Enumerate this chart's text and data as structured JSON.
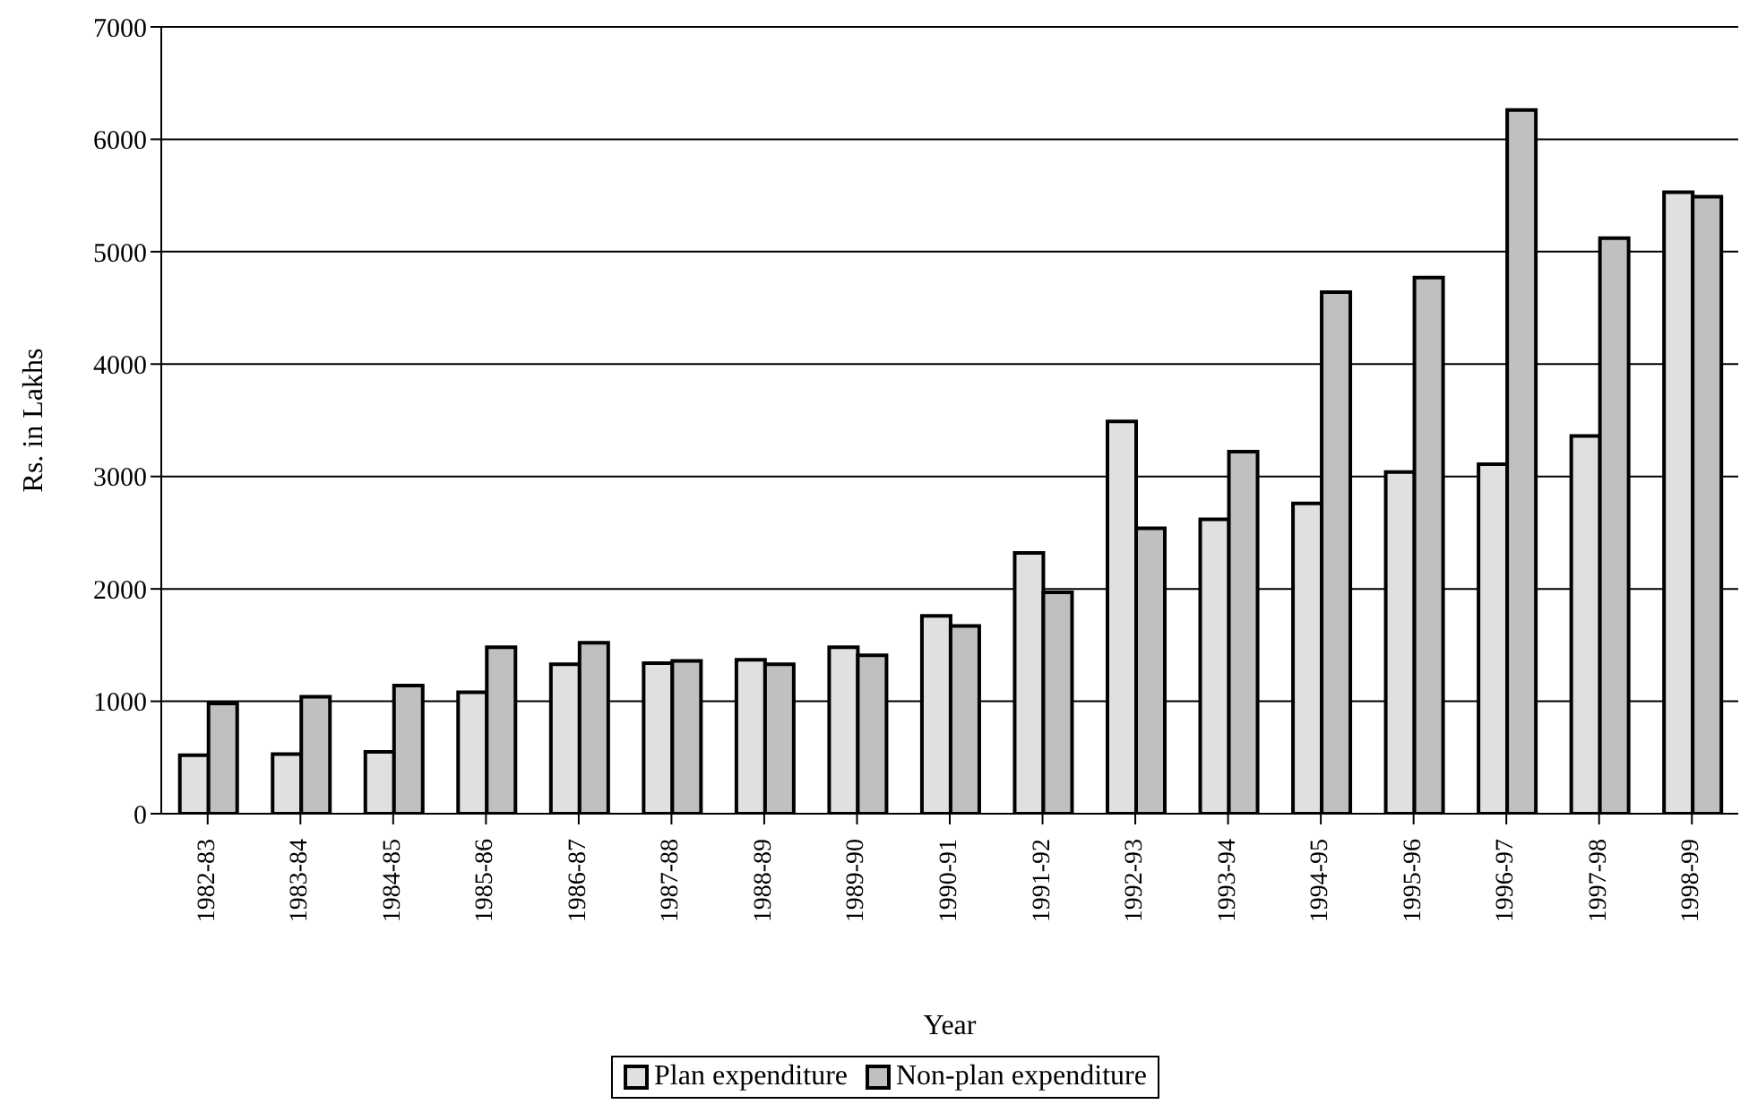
{
  "chart_data": {
    "type": "bar",
    "xlabel": "Year",
    "ylabel": "Rs. in Lakhs",
    "categories": [
      "1982-83",
      "1983-84",
      "1984-85",
      "1985-86",
      "1986-87",
      "1987-88",
      "1988-89",
      "1989-90",
      "1990-91",
      "1991-92",
      "1992-93",
      "1993-94",
      "1994-95",
      "1995-96",
      "1996-97",
      "1997-98",
      "1998-99"
    ],
    "series": [
      {
        "name": "Plan expenditure",
        "color": "#e0e0e0",
        "values": [
          520,
          530,
          550,
          1080,
          1330,
          1340,
          1370,
          1480,
          1760,
          2320,
          3490,
          2620,
          2760,
          3040,
          3110,
          3360,
          5530
        ]
      },
      {
        "name": "Non-plan expenditure",
        "color": "#c0c0c0",
        "values": [
          980,
          1040,
          1140,
          1480,
          1520,
          1360,
          1330,
          1410,
          1670,
          1970,
          2540,
          3220,
          4640,
          4770,
          6260,
          5120,
          5490
        ]
      }
    ],
    "ylim": [
      0,
      7000
    ],
    "yticks": [
      0,
      1000,
      2000,
      3000,
      4000,
      5000,
      6000,
      7000
    ],
    "grid": "y",
    "legend": "bottom"
  }
}
